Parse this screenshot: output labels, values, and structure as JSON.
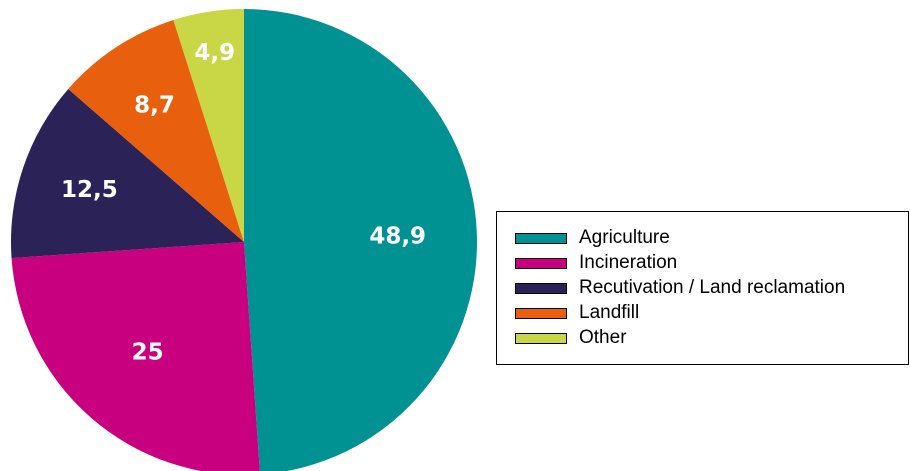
{
  "chart_data": {
    "type": "pie",
    "categories": [
      "Agriculture",
      "Incineration",
      "Recutivation / Land reclamation",
      "Landfill",
      "Other"
    ],
    "values": [
      48.9,
      25,
      12.5,
      8.7,
      4.9
    ],
    "value_labels": [
      "48,9",
      "25",
      "12,5",
      "8,7",
      "4,9"
    ],
    "colors": [
      "#009193",
      "#c8007f",
      "#2b2358",
      "#e8600d",
      "#c9d646"
    ],
    "start": "12 o'clock",
    "direction": "clockwise",
    "legend_position": "right"
  }
}
